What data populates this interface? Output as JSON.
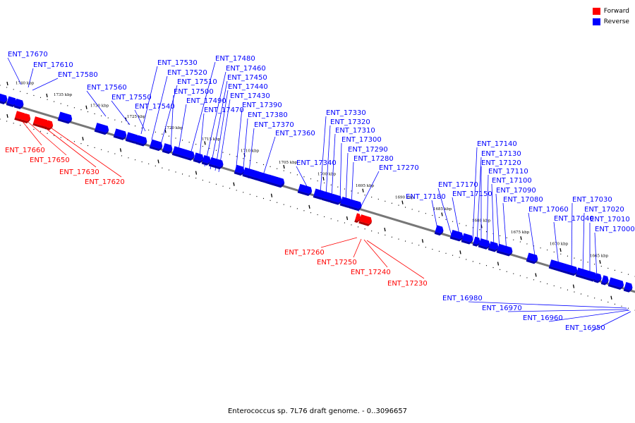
{
  "legend": {
    "forward_label": "Forward",
    "reverse_label": "Reverse",
    "forward_color": "#ff0000",
    "reverse_color": "#0000ff"
  },
  "caption": "Enterococcus sp. 7L76 draft genome. - 0..3096657",
  "colors": {
    "backbone": "#777777",
    "forward": "#ff0000",
    "reverse": "#0000ff",
    "tick": "#000000",
    "kbp_text": "#000000"
  },
  "kbp_labels": [
    "1740 kbp",
    "1735 kbp",
    "1730 kbp",
    "1725 kbp",
    "1720 kbp",
    "1715 kbp",
    "1710 kbp",
    "1705 kbp",
    "1700 kbp",
    "1695 kbp",
    "1690 kbp",
    "1685 kbp",
    "1680 kbp",
    "1675 kbp",
    "1670 kbp",
    "1665 kbp"
  ],
  "reverse_genes": [
    "ENT_17670",
    "ENT_17610",
    "ENT_17580",
    "ENT_17560",
    "ENT_17550",
    "ENT_17540",
    "ENT_17530",
    "ENT_17520",
    "ENT_17510",
    "ENT_17500",
    "ENT_17490",
    "ENT_17480",
    "ENT_17470",
    "ENT_17460",
    "ENT_17450",
    "ENT_17440",
    "ENT_17430",
    "ENT_17390",
    "ENT_17380",
    "ENT_17370",
    "ENT_17360",
    "ENT_17340",
    "ENT_17330",
    "ENT_17320",
    "ENT_17310",
    "ENT_17300",
    "ENT_17290",
    "ENT_17280",
    "ENT_17270",
    "ENT_17180",
    "ENT_17170",
    "ENT_17150",
    "ENT_17140",
    "ENT_17130",
    "ENT_17120",
    "ENT_17110",
    "ENT_17100",
    "ENT_17090",
    "ENT_17080",
    "ENT_17060",
    "ENT_17040",
    "ENT_17030",
    "ENT_17020",
    "ENT_17010",
    "ENT_17000",
    "ENT_16980",
    "ENT_16970",
    "ENT_16960",
    "ENT_16950"
  ],
  "forward_genes": [
    "ENT_17660",
    "ENT_17650",
    "ENT_17630",
    "ENT_17620",
    "ENT_17260",
    "ENT_17250",
    "ENT_17240",
    "ENT_17230"
  ]
}
